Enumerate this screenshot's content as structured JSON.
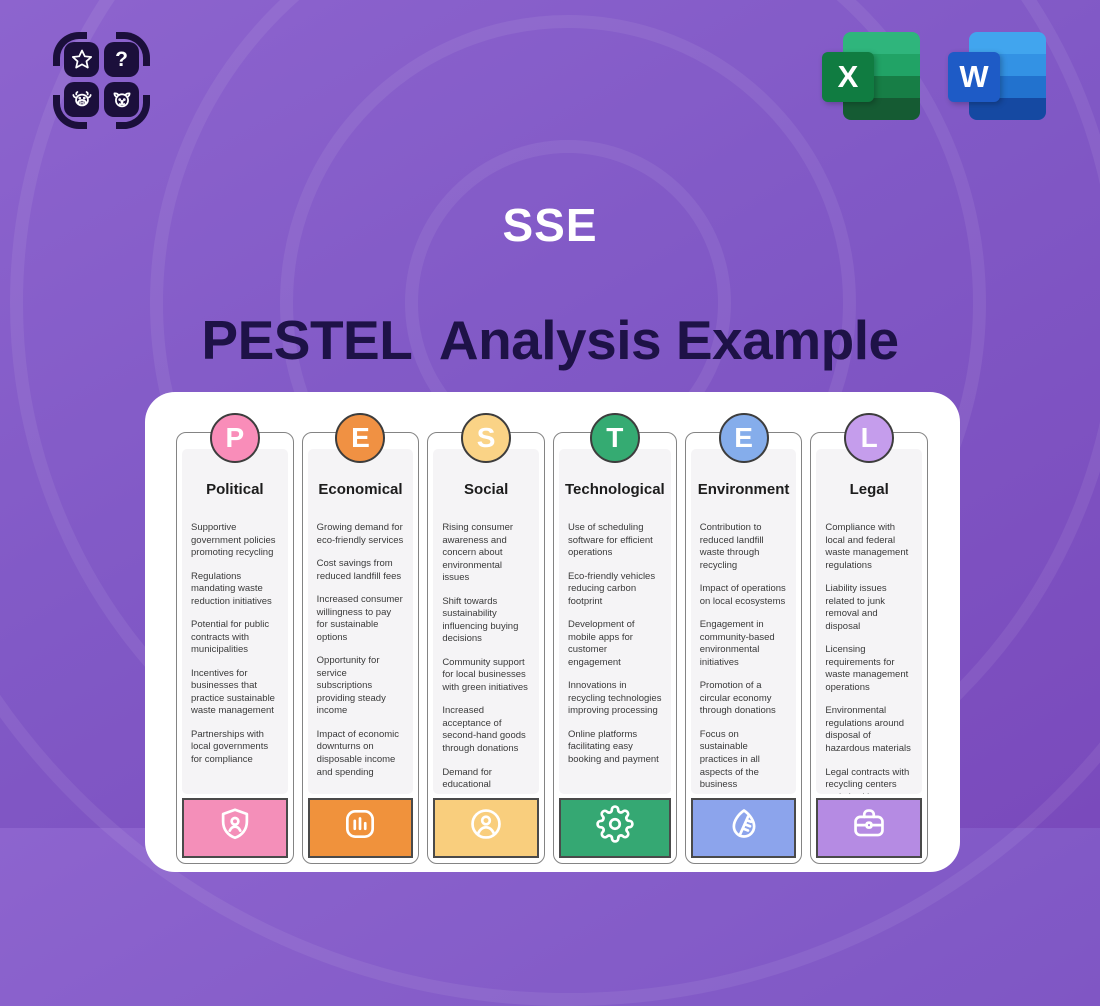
{
  "background": {
    "gradient_start": "#8D64CE",
    "gradient_end": "#7A4ABC",
    "ring_color": "rgba(255,255,255,0.07)"
  },
  "branding": {
    "logo_icons": [
      "star-icon",
      "question-icon",
      "cow-icon",
      "dog-icon"
    ],
    "question_glyph": "?"
  },
  "file_badges": {
    "excel_letter": "X",
    "word_letter": "W",
    "excel_front_color": "#107C41",
    "word_front_color": "#1E5BC6"
  },
  "header": {
    "site_label": "SSE",
    "title": "PESTEL  Analysis Example",
    "title_color": "#1E1247"
  },
  "analysis": {
    "columns": [
      {
        "letter": "P",
        "title": "Political",
        "circle_color": "#F98DB9",
        "footer_color": "#F48FB9",
        "footer_icon": "shield-user-icon",
        "items": [
          "Supportive government policies promoting recycling",
          "Regulations mandating waste reduction initiatives",
          "Potential for public contracts with municipalities",
          "Incentives for businesses that practice sustainable waste management",
          "Partnerships with local governments for compliance"
        ]
      },
      {
        "letter": "E",
        "title": "Economical",
        "circle_color": "#F09143",
        "footer_color": "#F0923C",
        "footer_icon": "bar-chart-icon",
        "items": [
          "Growing demand for eco-friendly services",
          "Cost savings from reduced landfill fees",
          "Increased consumer willingness to pay for sustainable options",
          "Opportunity for service subscriptions providing steady income",
          "Impact of economic downturns on disposable income and spending"
        ]
      },
      {
        "letter": "S",
        "title": "Social",
        "circle_color": "#FAD386",
        "footer_color": "#F9CE7D",
        "footer_icon": "user-circle-icon",
        "items": [
          "Rising consumer awareness and concern about environmental issues",
          "Shift towards sustainability influencing buying decisions",
          "Community support for local businesses with green initiatives",
          "Increased acceptance of second-hand goods through donations",
          "Demand for educational resources on waste management practices"
        ]
      },
      {
        "letter": "T",
        "title": "Technological",
        "circle_color": "#35AB72",
        "footer_color": "#35A873",
        "footer_icon": "gear-icon",
        "items": [
          "Use of scheduling software for efficient operations",
          "Eco-friendly vehicles reducing carbon footprint",
          "Development of mobile apps for customer engagement",
          "Innovations in recycling technologies improving processing",
          "Online platforms facilitating easy booking and payment"
        ]
      },
      {
        "letter": "E",
        "title": "Environment",
        "circle_color": "#85ADEB",
        "footer_color": "#8CA4EC",
        "footer_icon": "leaf-icon",
        "items": [
          "Contribution to reduced landfill waste through recycling",
          "Impact of operations on local ecosystems",
          "Engagement in community-based environmental initiatives",
          "Promotion of a circular economy through donations",
          "Focus on sustainable practices in all aspects of the business"
        ]
      },
      {
        "letter": "L",
        "title": "Legal",
        "circle_color": "#C59DEC",
        "footer_color": "#B58BE3",
        "footer_icon": "briefcase-icon",
        "items": [
          "Compliance with local and federal waste management regulations",
          "Liability issues related to junk removal and disposal",
          "Licensing requirements for waste management operations",
          "Environmental regulations around disposal of hazardous materials",
          "Legal contracts with recycling centers and charities"
        ]
      }
    ]
  }
}
